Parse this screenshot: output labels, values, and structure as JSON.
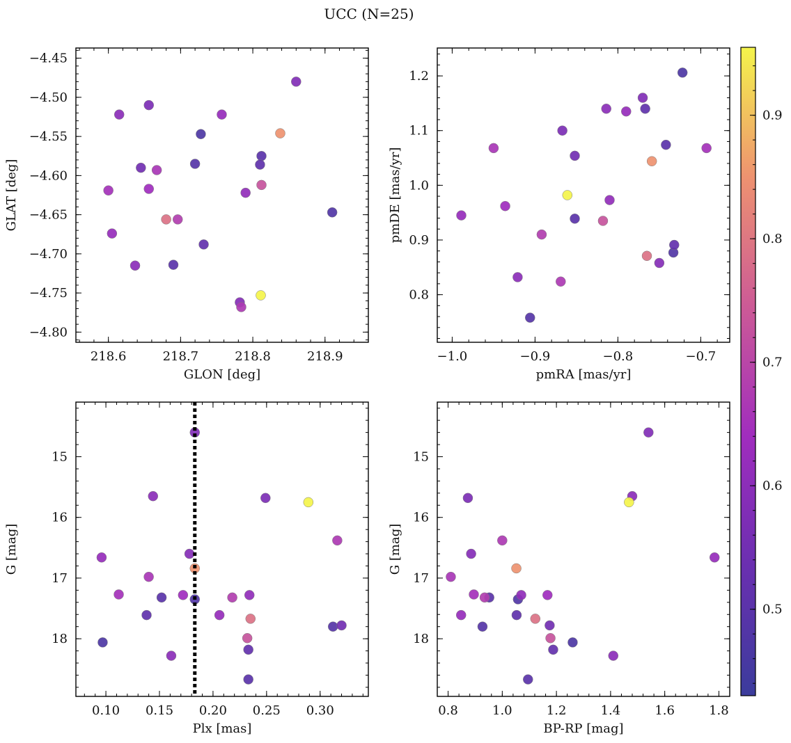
{
  "title": "UCC (N=25)",
  "colorbar": {
    "min": 0.43,
    "max": 0.955,
    "ticks": [
      0.5,
      0.6,
      0.7,
      0.8,
      0.9
    ],
    "tick_labels": [
      "0.5",
      "0.6",
      "0.7",
      "0.8",
      "0.9"
    ]
  },
  "points": [
    {
      "glon": 218.86,
      "glat": -4.48,
      "pmra": -0.77,
      "pmde": 1.16,
      "plx": 0.183,
      "g": 14.6,
      "bprp": 1.54,
      "c": 0.58
    },
    {
      "glon": 218.615,
      "glat": -4.522,
      "pmra": -0.814,
      "pmde": 1.14,
      "plx": 0.144,
      "g": 15.65,
      "bprp": 1.48,
      "c": 0.6
    },
    {
      "glon": 218.656,
      "glat": -4.51,
      "pmra": -0.867,
      "pmde": 1.1,
      "plx": 0.249,
      "g": 15.68,
      "bprp": 0.873,
      "c": 0.57
    },
    {
      "glon": 218.757,
      "glat": -4.522,
      "pmra": -0.79,
      "pmde": 1.135,
      "plx": 0.096,
      "g": 16.66,
      "bprp": 1.784,
      "c": 0.62
    },
    {
      "glon": 218.728,
      "glat": -4.547,
      "pmra": -0.722,
      "pmde": 1.206,
      "plx": 0.097,
      "g": 18.06,
      "bprp": 1.26,
      "c": 0.47
    },
    {
      "glon": 218.838,
      "glat": -4.546,
      "pmra": -0.759,
      "pmde": 1.044,
      "plx": 0.183,
      "g": 16.84,
      "bprp": 1.052,
      "c": 0.85
    },
    {
      "glon": 218.812,
      "glat": -4.575,
      "pmra": -0.742,
      "pmde": 1.074,
      "plx": 0.152,
      "g": 17.32,
      "bprp": 0.952,
      "c": 0.5
    },
    {
      "glon": 218.81,
      "glat": -4.586,
      "pmra": -0.767,
      "pmde": 1.14,
      "plx": 0.138,
      "g": 17.61,
      "bprp": 1.053,
      "c": 0.51
    },
    {
      "glon": 218.72,
      "glat": -4.585,
      "pmra": -0.906,
      "pmde": 0.758,
      "plx": 0.312,
      "g": 17.8,
      "bprp": 0.927,
      "c": 0.49
    },
    {
      "glon": 218.645,
      "glat": -4.59,
      "pmra": -0.852,
      "pmde": 1.054,
      "plx": 0.32,
      "g": 17.78,
      "bprp": 1.175,
      "c": 0.55
    },
    {
      "glon": 218.667,
      "glat": -4.593,
      "pmra": -0.95,
      "pmde": 1.068,
      "plx": 0.14,
      "g": 16.98,
      "bprp": 0.81,
      "c": 0.66
    },
    {
      "glon": 218.6,
      "glat": -4.619,
      "pmra": -0.693,
      "pmde": 1.068,
      "plx": 0.112,
      "g": 17.27,
      "bprp": 0.895,
      "c": 0.65
    },
    {
      "glon": 218.656,
      "glat": -4.617,
      "pmra": -0.936,
      "pmde": 0.962,
      "plx": 0.172,
      "g": 17.28,
      "bprp": 1.167,
      "c": 0.64
    },
    {
      "glon": 218.812,
      "glat": -4.612,
      "pmra": -0.818,
      "pmde": 0.935,
      "plx": 0.232,
      "g": 17.99,
      "bprp": 1.178,
      "c": 0.73
    },
    {
      "glon": 218.79,
      "glat": -4.622,
      "pmra": -0.81,
      "pmde": 0.973,
      "plx": 0.234,
      "g": 17.28,
      "bprp": 1.07,
      "c": 0.61
    },
    {
      "glon": 218.68,
      "glat": -4.656,
      "pmra": -0.765,
      "pmde": 0.871,
      "plx": 0.235,
      "g": 17.67,
      "bprp": 1.122,
      "c": 0.79
    },
    {
      "glon": 218.696,
      "glat": -4.656,
      "pmra": -0.892,
      "pmde": 0.91,
      "plx": 0.218,
      "g": 17.32,
      "bprp": 0.935,
      "c": 0.68
    },
    {
      "glon": 218.605,
      "glat": -4.674,
      "pmra": -0.989,
      "pmde": 0.945,
      "plx": 0.206,
      "g": 17.61,
      "bprp": 0.848,
      "c": 0.62
    },
    {
      "glon": 218.91,
      "glat": -4.647,
      "pmra": -0.733,
      "pmde": 0.877,
      "plx": 0.183,
      "g": 17.35,
      "bprp": 1.058,
      "c": 0.48
    },
    {
      "glon": 218.732,
      "glat": -4.688,
      "pmra": -0.732,
      "pmde": 0.891,
      "plx": 0.233,
      "g": 18.18,
      "bprp": 1.188,
      "c": 0.52
    },
    {
      "glon": 218.637,
      "glat": -4.715,
      "pmra": -0.921,
      "pmde": 0.832,
      "plx": 0.161,
      "g": 18.28,
      "bprp": 1.41,
      "c": 0.6
    },
    {
      "glon": 218.69,
      "glat": -4.714,
      "pmra": -0.852,
      "pmde": 0.939,
      "plx": 0.233,
      "g": 18.67,
      "bprp": 1.095,
      "c": 0.5
    },
    {
      "glon": 218.811,
      "glat": -4.753,
      "pmra": -0.861,
      "pmde": 0.982,
      "plx": 0.289,
      "g": 15.75,
      "bprp": 1.468,
      "c": 0.955
    },
    {
      "glon": 218.782,
      "glat": -4.762,
      "pmra": -0.75,
      "pmde": 0.858,
      "plx": 0.178,
      "g": 16.6,
      "bprp": 0.885,
      "c": 0.59
    },
    {
      "glon": 218.784,
      "glat": -4.768,
      "pmra": -0.869,
      "pmde": 0.824,
      "plx": 0.316,
      "g": 16.38,
      "bprp": 1.0,
      "c": 0.67
    }
  ],
  "chart_data": [
    {
      "type": "scatter",
      "title": "",
      "xlabel": "GLON [deg]",
      "ylabel": "GLAT [deg]",
      "x_field": "glon",
      "y_field": "glat",
      "xlim": [
        218.555,
        218.96
      ],
      "ylim": [
        -4.813,
        -4.437
      ],
      "y_inverted": false,
      "xticks": [
        218.6,
        218.7,
        218.8,
        218.9
      ],
      "xtick_labels": [
        "218.6",
        "218.7",
        "218.8",
        "218.9"
      ],
      "yticks": [
        -4.45,
        -4.5,
        -4.55,
        -4.6,
        -4.65,
        -4.7,
        -4.75,
        -4.8
      ],
      "ytick_labels": [
        "−4.45",
        "−4.50",
        "−4.55",
        "−4.60",
        "−4.65",
        "−4.70",
        "−4.75",
        "−4.80"
      ],
      "xminor": 0.02,
      "yminor": 0.01,
      "vline": null
    },
    {
      "type": "scatter",
      "title": "",
      "xlabel": "pmRA [mas/yr]",
      "ylabel": "pmDE [mas/yr]",
      "x_field": "pmra",
      "y_field": "pmde",
      "xlim": [
        -1.018,
        -0.665
      ],
      "ylim": [
        0.713,
        1.251
      ],
      "y_inverted": false,
      "xticks": [
        -1.0,
        -0.9,
        -0.8,
        -0.7
      ],
      "xtick_labels": [
        "−1.0",
        "−0.9",
        "−0.8",
        "−0.7"
      ],
      "yticks": [
        0.8,
        0.9,
        1.0,
        1.1,
        1.2
      ],
      "ytick_labels": [
        "0.8",
        "0.9",
        "1.0",
        "1.1",
        "1.2"
      ],
      "xminor": 0.02,
      "yminor": 0.02,
      "vline": null
    },
    {
      "type": "scatter",
      "title": "",
      "xlabel": "Plx [mas]",
      "ylabel": "G [mag]",
      "x_field": "plx",
      "y_field": "g",
      "xlim": [
        0.072,
        0.345
      ],
      "ylim": [
        14.1,
        18.95
      ],
      "y_inverted": true,
      "xticks": [
        0.1,
        0.15,
        0.2,
        0.25,
        0.3
      ],
      "xtick_labels": [
        "0.10",
        "0.15",
        "0.20",
        "0.25",
        "0.30"
      ],
      "yticks": [
        15,
        16,
        17,
        18
      ],
      "ytick_labels": [
        "15",
        "16",
        "17",
        "18"
      ],
      "xminor": 0.01,
      "yminor": 0.2,
      "vline": 0.183
    },
    {
      "type": "scatter",
      "title": "",
      "xlabel": "BP-RP [mag]",
      "ylabel": "G [mag]",
      "x_field": "bprp",
      "y_field": "g",
      "xlim": [
        0.76,
        1.84
      ],
      "ylim": [
        14.1,
        18.95
      ],
      "y_inverted": true,
      "xticks": [
        0.8,
        1.0,
        1.2,
        1.4,
        1.6,
        1.8
      ],
      "xtick_labels": [
        "0.8",
        "1.0",
        "1.2",
        "1.4",
        "1.6",
        "1.8"
      ],
      "yticks": [
        15,
        16,
        17,
        18
      ],
      "ytick_labels": [
        "15",
        "16",
        "17",
        "18"
      ],
      "xminor": 0.04,
      "yminor": 0.2,
      "vline": null
    }
  ]
}
